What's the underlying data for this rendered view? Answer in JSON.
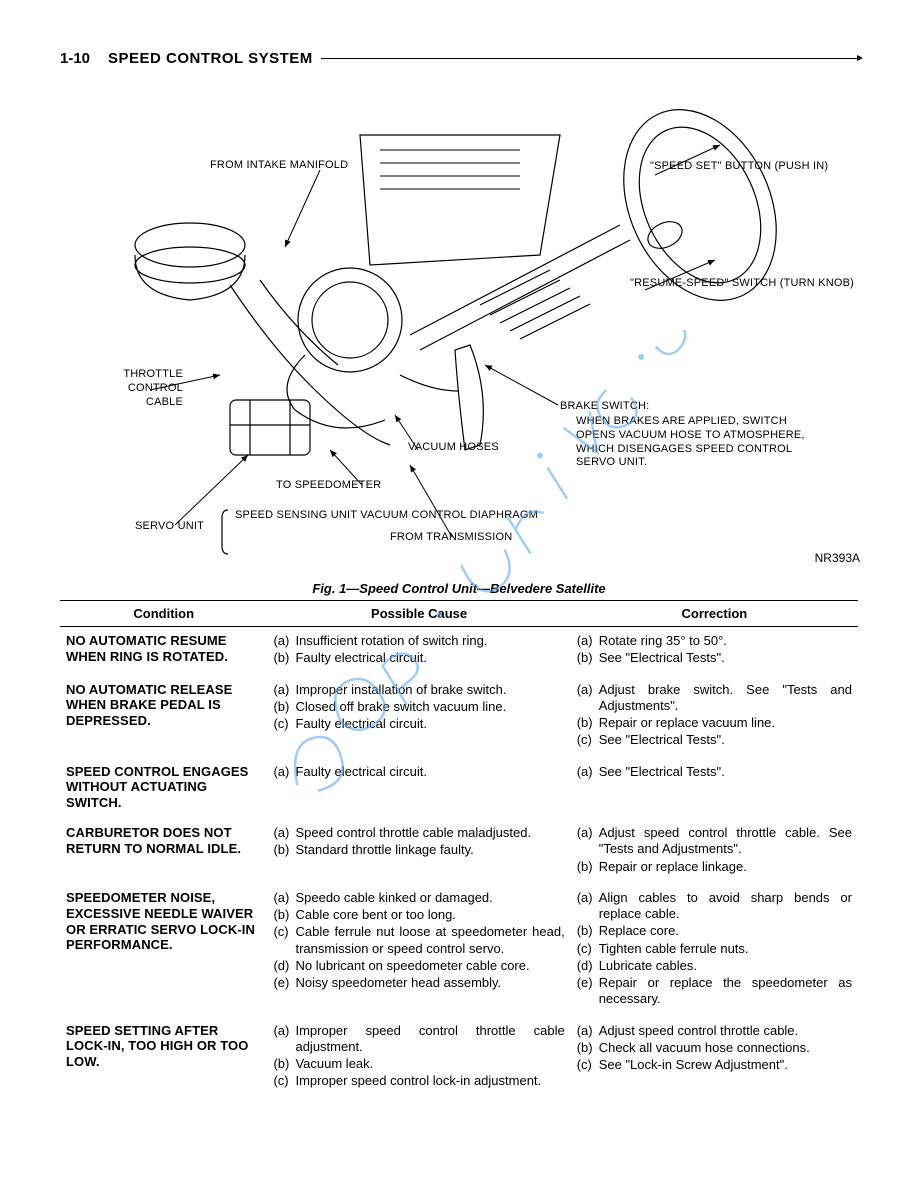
{
  "header": {
    "page_number": "1-10",
    "section_title": "SPEED CONTROL SYSTEM"
  },
  "diagram": {
    "labels": {
      "intake": "FROM INTAKE MANIFOLD",
      "speed_set": "\"SPEED SET\" BUTTON\n(PUSH IN)",
      "resume": "\"RESUME-SPEED\" SWITCH\n(TURN KNOB)",
      "throttle": "THROTTLE\nCONTROL CABLE",
      "brake_switch_title": "BRAKE SWITCH:",
      "brake_switch_text": "WHEN BRAKES ARE APPLIED, SWITCH\nOPENS VACUUM HOSE TO ATMOSPHERE,\nWHICH DISENGAGES SPEED CONTROL\nSERVO UNIT.",
      "vacuum_hoses": "VACUUM\nHOSES",
      "to_speedo": "TO SPEEDOMETER",
      "servo_unit": "SERVO UNIT",
      "servo_brace": "SPEED SENSING UNIT\nVACUUM CONTROL\nDIAPHRAGM",
      "from_trans": "FROM TRANSMISSION"
    },
    "figure_id": "NR393A"
  },
  "caption": "Fig. 1—Speed Control Unit—Belvedere Satellite",
  "table": {
    "columns": [
      "Condition",
      "Possible Cause",
      "Correction"
    ],
    "rows": [
      {
        "condition": "NO AUTOMATIC RESUME WHEN RING IS ROTATED.",
        "causes": [
          [
            "(a)",
            "Insufficient rotation of switch ring."
          ],
          [
            "(b)",
            "Faulty electrical circuit."
          ]
        ],
        "corrections": [
          [
            "(a)",
            "Rotate ring 35° to 50°."
          ],
          [
            "(b)",
            "See \"Electrical Tests\"."
          ]
        ]
      },
      {
        "condition": "NO AUTOMATIC RELEASE WHEN BRAKE PEDAL IS DEPRESSED.",
        "causes": [
          [
            "(a)",
            "Improper installation of brake switch."
          ],
          [
            "(b)",
            "Closed off brake switch vacuum line."
          ],
          [
            "(c)",
            "Faulty electrical circuit."
          ]
        ],
        "corrections": [
          [
            "(a)",
            "Adjust brake switch. See \"Tests and Adjustments\"."
          ],
          [
            "(b)",
            "Repair or replace vacuum line."
          ],
          [
            "(c)",
            "See \"Electrical Tests\"."
          ]
        ]
      },
      {
        "condition": "SPEED CONTROL ENGAGES WITHOUT ACTUATING SWITCH.",
        "causes": [
          [
            "(a)",
            "Faulty electrical circuit."
          ]
        ],
        "corrections": [
          [
            "(a)",
            "See \"Electrical Tests\"."
          ]
        ]
      },
      {
        "condition": "CARBURETOR DOES NOT RETURN TO NORMAL IDLE.",
        "causes": [
          [
            "(a)",
            "Speed control throttle cable maladjusted."
          ],
          [
            "(b)",
            "Standard throttle linkage faulty."
          ]
        ],
        "corrections": [
          [
            "(a)",
            "Adjust speed control throttle cable. See \"Tests and Adjustments\"."
          ],
          [
            "(b)",
            "Repair or replace linkage."
          ]
        ]
      },
      {
        "condition": "SPEEDOMETER NOISE, EXCESSIVE NEEDLE WAIVER OR ERRATIC SERVO LOCK-IN PERFORMANCE.",
        "causes": [
          [
            "(a)",
            "Speedo cable kinked or damaged."
          ],
          [
            "(b)",
            "Cable core bent or too long."
          ],
          [
            "(c)",
            "Cable ferrule nut loose at speedometer head, transmission or speed control servo."
          ],
          [
            "(d)",
            "No lubricant on speedometer cable core."
          ],
          [
            "(e)",
            "Noisy speedometer head assembly."
          ]
        ],
        "corrections": [
          [
            "(a)",
            "Align cables to avoid sharp bends or replace cable."
          ],
          [
            "(b)",
            "Replace core."
          ],
          [
            "(c)",
            "Tighten cable ferrule nuts."
          ],
          [
            "(d)",
            "Lubricate cables."
          ],
          [
            "(e)",
            "Repair or replace the speedometer as necessary."
          ]
        ]
      },
      {
        "condition": "SPEED SETTING AFTER LOCK-IN, TOO HIGH OR TOO LOW.",
        "causes": [
          [
            "(a)",
            "Improper speed control throttle cable adjustment."
          ],
          [
            "(b)",
            "Vacuum leak."
          ],
          [
            "(c)",
            "Improper speed control lock-in adjustment."
          ]
        ],
        "corrections": [
          [
            "(a)",
            "Adjust speed control throttle cable."
          ],
          [
            "(b)",
            "Check all vacuum hose connections."
          ],
          [
            "(c)",
            "See \"Lock-in Screw Adjustment\"."
          ]
        ]
      }
    ]
  },
  "watermark_color": "#5aa4e6"
}
